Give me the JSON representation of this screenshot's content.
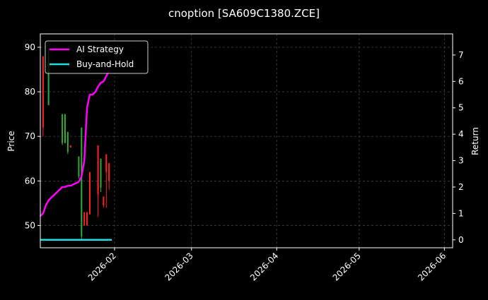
{
  "chart_data": {
    "type": "line",
    "title": "cnoption [SA609C1380.ZCE]",
    "xlabel": "",
    "ylabel_left": "Price",
    "ylabel_right": "Return",
    "x_ticks": [
      "2026-02",
      "2026-03",
      "2026-04",
      "2026-05",
      "2026-06"
    ],
    "x_range": [
      "2026-01-05",
      "2026-06-04"
    ],
    "y_left_range": [
      45,
      93
    ],
    "y_left_ticks": [
      50,
      60,
      70,
      80,
      90
    ],
    "y_right_range": [
      -0.3,
      7.8
    ],
    "y_right_ticks": [
      0,
      1,
      2,
      3,
      4,
      5,
      6,
      7
    ],
    "grid": true,
    "legend_position": "top-left",
    "series": [
      {
        "name": "AI Strategy",
        "axis": "right",
        "color": "#ff00ff",
        "points": [
          [
            "2026-01-05",
            0.9
          ],
          [
            "2026-01-06",
            1.0
          ],
          [
            "2026-01-07",
            1.3
          ],
          [
            "2026-01-08",
            1.5
          ],
          [
            "2026-01-09",
            1.6
          ],
          [
            "2026-01-10",
            1.7
          ],
          [
            "2026-01-11",
            1.8
          ],
          [
            "2026-01-12",
            1.9
          ],
          [
            "2026-01-13",
            2.0
          ],
          [
            "2026-01-14",
            2.0
          ],
          [
            "2026-01-15",
            2.05
          ],
          [
            "2026-01-16",
            2.05
          ],
          [
            "2026-01-17",
            2.1
          ],
          [
            "2026-01-18",
            2.15
          ],
          [
            "2026-01-19",
            2.2
          ],
          [
            "2026-01-20",
            2.4
          ],
          [
            "2026-01-21",
            3.0
          ],
          [
            "2026-01-22",
            5.0
          ],
          [
            "2026-01-23",
            5.5
          ],
          [
            "2026-01-24",
            5.5
          ],
          [
            "2026-01-25",
            5.6
          ],
          [
            "2026-01-26",
            5.8
          ],
          [
            "2026-01-27",
            5.95
          ],
          [
            "2026-01-28",
            6.0
          ],
          [
            "2026-01-29",
            6.2
          ],
          [
            "2026-01-30",
            6.4
          ]
        ]
      },
      {
        "name": "Buy-and-Hold",
        "axis": "right",
        "color": "#22dddd",
        "points": [
          [
            "2026-01-05",
            0.0
          ],
          [
            "2026-01-31",
            0.0
          ]
        ]
      }
    ],
    "candles": [
      {
        "date": "2026-01-06",
        "open": 88.0,
        "close": 72.0,
        "high": 88.0,
        "low": 70.0
      },
      {
        "date": "2026-01-08",
        "open": 77.0,
        "close": 89.0,
        "high": 89.5,
        "low": 77.0
      },
      {
        "date": "2026-01-13",
        "open": 68.5,
        "close": 75.0,
        "high": 75.0,
        "low": 68.0
      },
      {
        "date": "2026-01-14",
        "open": 68.5,
        "close": 75.0,
        "high": 75.0,
        "low": 68.5
      },
      {
        "date": "2026-01-15",
        "open": 66.5,
        "close": 71.0,
        "high": 71.0,
        "low": 66.0
      },
      {
        "date": "2026-01-16",
        "open": 68.0,
        "close": 67.5,
        "high": 68.0,
        "low": 67.5
      },
      {
        "date": "2026-01-19",
        "open": 61.0,
        "close": 65.5,
        "high": 65.5,
        "low": 60.5
      },
      {
        "date": "2026-01-20",
        "open": 47.5,
        "close": 72.0,
        "high": 72.0,
        "low": 47.0
      },
      {
        "date": "2026-01-21",
        "open": 53.0,
        "close": 50.0,
        "high": 53.0,
        "low": 50.0
      },
      {
        "date": "2026-01-22",
        "open": 53.0,
        "close": 50.0,
        "high": 53.0,
        "low": 50.0
      },
      {
        "date": "2026-01-23",
        "open": 62.0,
        "close": 52.5,
        "high": 62.0,
        "low": 52.5
      },
      {
        "date": "2026-01-26",
        "open": 60.0,
        "close": 57.0,
        "high": 61.5,
        "low": 56.5
      },
      {
        "date": "2026-01-26",
        "open": 68.0,
        "close": 58.0,
        "high": 68.0,
        "low": 52.0
      },
      {
        "date": "2026-01-27",
        "open": 58.5,
        "close": 65.0,
        "high": 65.0,
        "low": 57.5
      },
      {
        "date": "2026-01-28",
        "open": 56.5,
        "close": 54.5,
        "high": 56.5,
        "low": 54.0
      },
      {
        "date": "2026-01-29",
        "open": 66.0,
        "close": 62.0,
        "high": 66.0,
        "low": 54.0
      },
      {
        "date": "2026-01-30",
        "open": 64.0,
        "close": 60.0,
        "high": 64.0,
        "low": 58.0
      }
    ],
    "candle_up_color": "#33aa33",
    "candle_down_color": "#ff2222"
  }
}
